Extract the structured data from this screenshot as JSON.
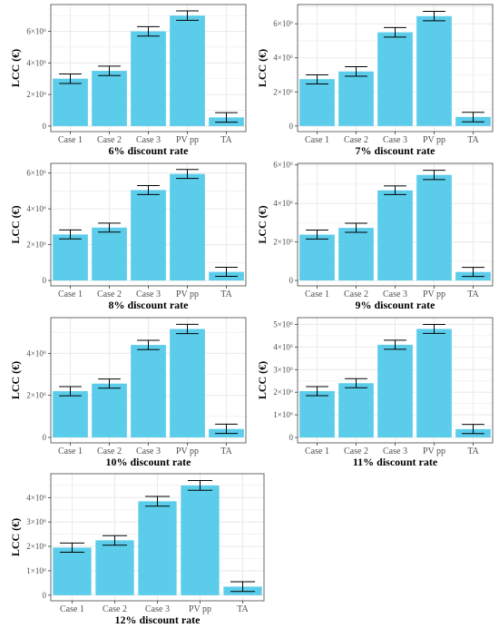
{
  "colors": {
    "bar": "#5bcdeb",
    "grid": "#ebebeb",
    "panel_border": "#444444",
    "text": "#000000",
    "tick_text": "#4d4d4d"
  },
  "chart_data": [
    {
      "type": "bar",
      "title": "",
      "xlabel": "6% discount rate",
      "ylabel": "LCC (€)",
      "categories": [
        "Case 1",
        "Case 2",
        "Case 3",
        "PV pp",
        "TA"
      ],
      "values": [
        3000000,
        3500000,
        6000000,
        7000000,
        550000
      ],
      "error": [
        [
          2700000,
          3300000
        ],
        [
          3200000,
          3800000
        ],
        [
          5700000,
          6300000
        ],
        [
          6700000,
          7300000
        ],
        [
          250000,
          850000
        ]
      ],
      "yticks": [
        "0",
        "2×10⁶",
        "4×10⁶",
        "6×10⁶"
      ],
      "ytick_values": [
        0,
        2000000,
        4000000,
        6000000
      ],
      "ylim": [
        -350000,
        7700000
      ],
      "grid": true
    },
    {
      "type": "bar",
      "title": "",
      "xlabel": "7% discount rate",
      "ylabel": "LCC (€)",
      "categories": [
        "Case 1",
        "Case 2",
        "Case 3",
        "PV pp",
        "TA"
      ],
      "values": [
        2750000,
        3200000,
        5500000,
        6450000,
        530000
      ],
      "error": [
        [
          2470000,
          3000000
        ],
        [
          2920000,
          3480000
        ],
        [
          5220000,
          5780000
        ],
        [
          6180000,
          6730000
        ],
        [
          240000,
          800000
        ]
      ],
      "yticks": [
        "0",
        "2×10⁶",
        "4×10⁶",
        "6×10⁶"
      ],
      "ytick_values": [
        0,
        2000000,
        4000000,
        6000000
      ],
      "ylim": [
        -330000,
        7130000
      ],
      "grid": true
    },
    {
      "type": "bar",
      "title": "",
      "xlabel": "8% discount rate",
      "ylabel": "LCC (€)",
      "categories": [
        "Case 1",
        "Case 2",
        "Case 3",
        "PV pp",
        "TA"
      ],
      "values": [
        2570000,
        2950000,
        5050000,
        5950000,
        480000
      ],
      "error": [
        [
          2320000,
          2820000
        ],
        [
          2700000,
          3200000
        ],
        [
          4800000,
          5300000
        ],
        [
          5700000,
          6200000
        ],
        [
          230000,
          740000
        ]
      ],
      "yticks": [
        "0",
        "2×10⁶",
        "4×10⁶",
        "6×10⁶"
      ],
      "ytick_values": [
        0,
        2000000,
        4000000,
        6000000
      ],
      "ylim": [
        -300000,
        6540000
      ],
      "grid": true
    },
    {
      "type": "bar",
      "title": "",
      "xlabel": "9% discount rate",
      "ylabel": "LCC (€)",
      "categories": [
        "Case 1",
        "Case 2",
        "Case 3",
        "PV pp",
        "TA"
      ],
      "values": [
        2380000,
        2730000,
        4680000,
        5480000,
        440000
      ],
      "error": [
        [
          2150000,
          2620000
        ],
        [
          2500000,
          2970000
        ],
        [
          4460000,
          4910000
        ],
        [
          5240000,
          5720000
        ],
        [
          210000,
          680000
        ]
      ],
      "yticks": [
        "0",
        "2×10⁶",
        "4×10⁶",
        "6×10⁶"
      ],
      "ytick_values": [
        0,
        2000000,
        4000000,
        6000000
      ],
      "ylim": [
        -280000,
        6080000
      ],
      "grid": true
    },
    {
      "type": "bar",
      "title": "",
      "xlabel": "10% discount rate",
      "ylabel": "LCC (€)",
      "categories": [
        "Case 1",
        "Case 2",
        "Case 3",
        "PV pp",
        "TA"
      ],
      "values": [
        2200000,
        2560000,
        4400000,
        5160000,
        400000
      ],
      "error": [
        [
          1980000,
          2420000
        ],
        [
          2340000,
          2780000
        ],
        [
          4180000,
          4620000
        ],
        [
          4940000,
          5380000
        ],
        [
          190000,
          630000
        ]
      ],
      "yticks": [
        "0",
        "2×10⁶",
        "4×10⁶"
      ],
      "ytick_values": [
        0,
        2000000,
        4000000
      ],
      "ylim": [
        -260000,
        5700000
      ],
      "grid": true
    },
    {
      "type": "bar",
      "title": "",
      "xlabel": "11% discount rate",
      "ylabel": "LCC (€)",
      "categories": [
        "Case 1",
        "Case 2",
        "Case 3",
        "PV pp",
        "TA"
      ],
      "values": [
        2050000,
        2400000,
        4100000,
        4800000,
        370000
      ],
      "error": [
        [
          1850000,
          2250000
        ],
        [
          2200000,
          2600000
        ],
        [
          3900000,
          4300000
        ],
        [
          4600000,
          5000000
        ],
        [
          170000,
          580000
        ]
      ],
      "yticks": [
        "0",
        "1×10⁶",
        "2×10⁶",
        "3×10⁶",
        "4×10⁶",
        "5×10⁶"
      ],
      "ytick_values": [
        0,
        1000000,
        2000000,
        3000000,
        4000000,
        5000000
      ],
      "ylim": [
        -240000,
        5300000
      ],
      "grid": true
    },
    {
      "type": "bar",
      "title": "",
      "xlabel": "12% discount rate",
      "ylabel": "LCC (€)",
      "categories": [
        "Case 1",
        "Case 2",
        "Case 3",
        "PV pp",
        "TA"
      ],
      "values": [
        1950000,
        2250000,
        3850000,
        4500000,
        350000
      ],
      "error": [
        [
          1760000,
          2140000
        ],
        [
          2050000,
          2440000
        ],
        [
          3650000,
          4050000
        ],
        [
          4300000,
          4700000
        ],
        [
          150000,
          550000
        ]
      ],
      "yticks": [
        "0",
        "1×10⁶",
        "2×10⁶",
        "3×10⁶",
        "4×10⁶"
      ],
      "ytick_values": [
        0,
        1000000,
        2000000,
        3000000,
        4000000
      ],
      "ylim": [
        -230000,
        4980000
      ],
      "grid": true
    }
  ]
}
